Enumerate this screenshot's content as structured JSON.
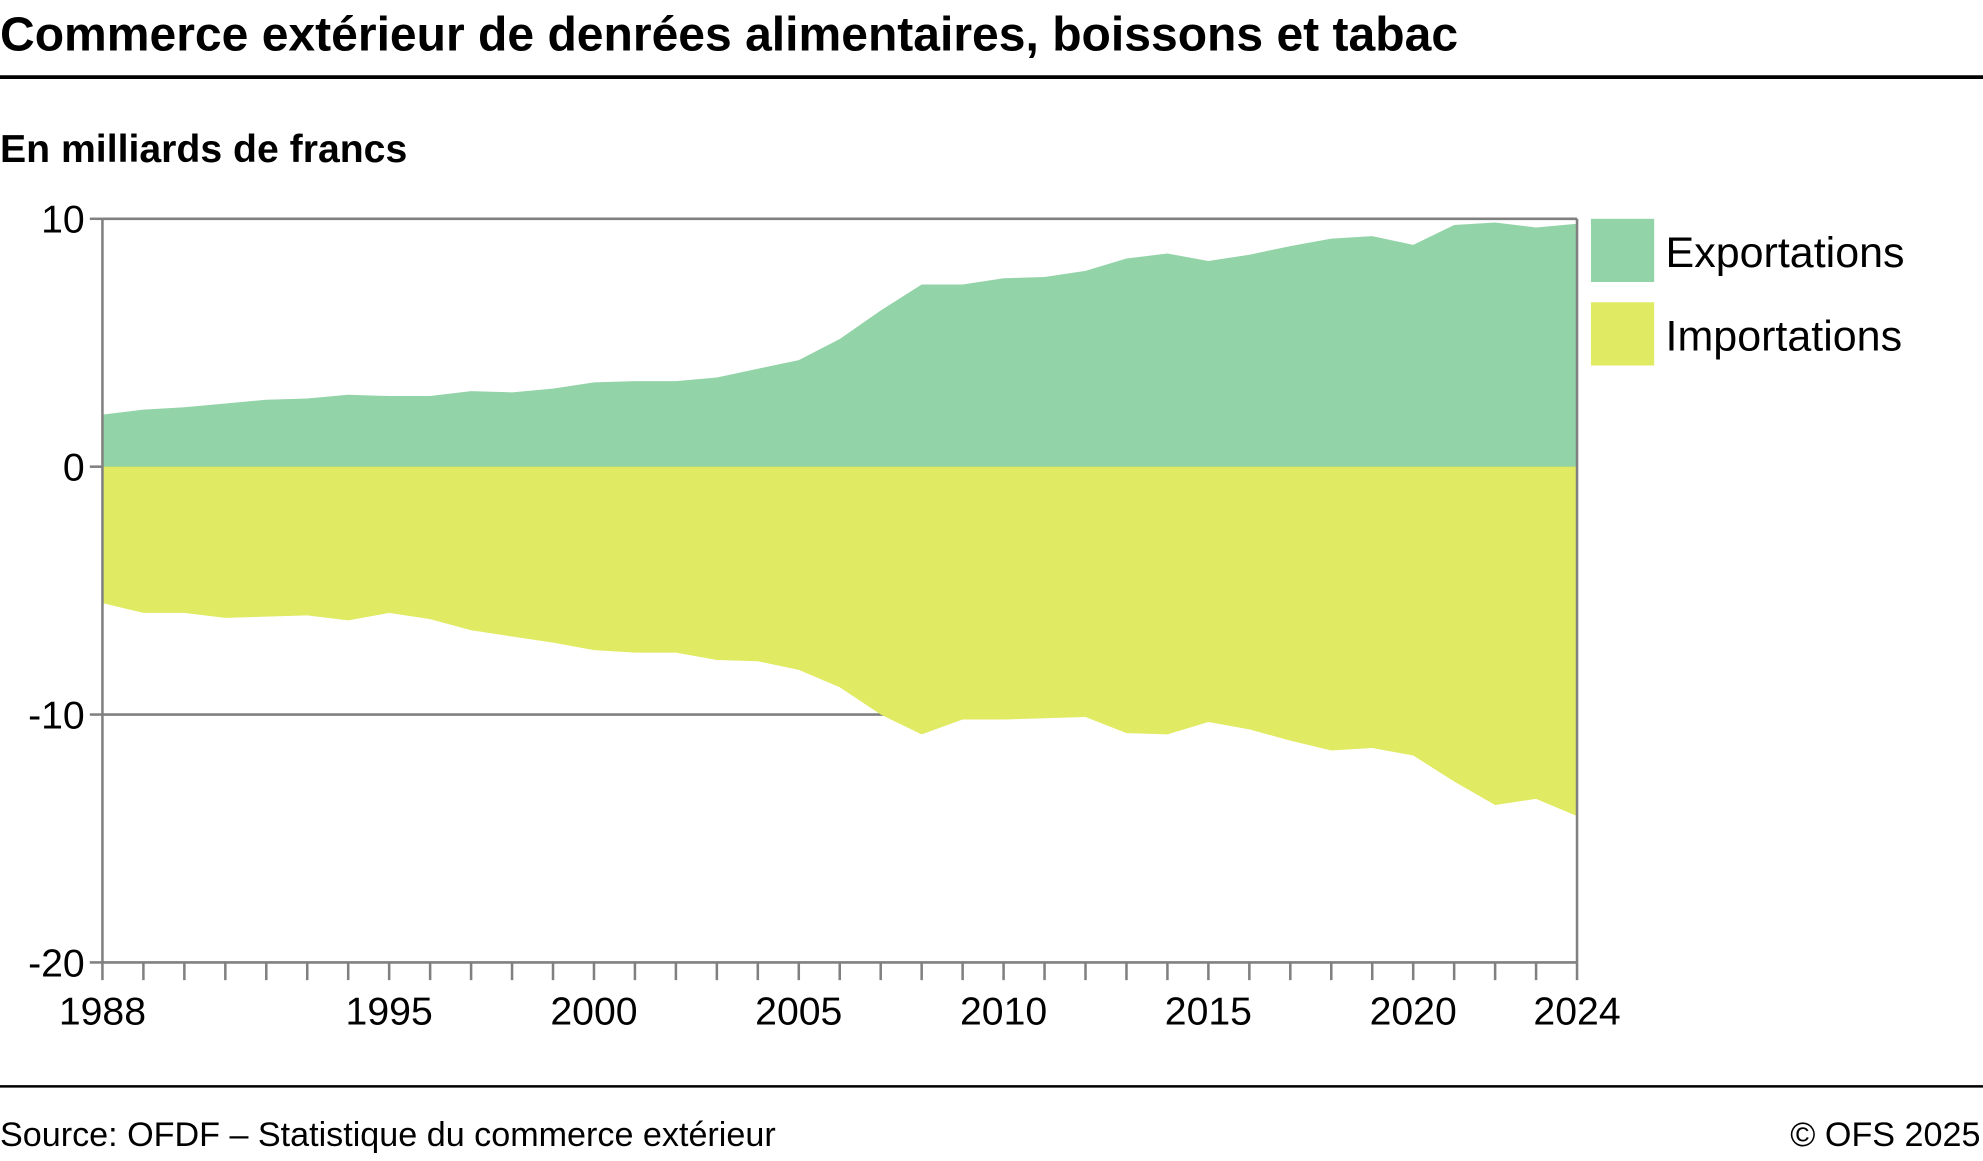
{
  "title": "Commerce extérieur de denrées alimentaires, boissons et tabac",
  "subtitle": "En milliards de francs",
  "footer": {
    "source": "Source: OFDF – Statistique du commerce extérieur",
    "copyright": "© OFS 2025"
  },
  "colors": {
    "exports": "#93d3a8",
    "imports": "#e0ea62",
    "axis": "#808080"
  },
  "chart_data": {
    "type": "area",
    "title": "Commerce extérieur de denrées alimentaires, boissons et tabac",
    "ylabel": "En milliards de francs",
    "xlabel": "",
    "ylim": [
      -20,
      10
    ],
    "xlim": [
      1988,
      2024
    ],
    "yticks": [
      "10",
      "0",
      "-10",
      "-20"
    ],
    "ytick_values": [
      10,
      0,
      -10,
      -20
    ],
    "xtick_labels": [
      "1988",
      "1995",
      "2000",
      "2005",
      "2010",
      "2015",
      "2020",
      "2024"
    ],
    "grid": "horizontal at -10, 0, 10",
    "legend_position": "right-top",
    "x": [
      1988,
      1989,
      1990,
      1991,
      1992,
      1993,
      1994,
      1995,
      1996,
      1997,
      1998,
      1999,
      2000,
      2001,
      2002,
      2003,
      2004,
      2005,
      2006,
      2007,
      2008,
      2009,
      2010,
      2011,
      2012,
      2013,
      2014,
      2015,
      2016,
      2017,
      2018,
      2019,
      2020,
      2021,
      2022,
      2023,
      2024
    ],
    "series": [
      {
        "name": "Exportations",
        "values": [
          2.1,
          2.3,
          2.4,
          2.55,
          2.7,
          2.75,
          2.9,
          2.85,
          2.85,
          3.05,
          3.0,
          3.15,
          3.4,
          3.45,
          3.45,
          3.6,
          3.95,
          4.3,
          5.15,
          6.3,
          7.35,
          7.35,
          7.6,
          7.65,
          7.9,
          8.4,
          8.6,
          8.3,
          8.55,
          8.9,
          9.2,
          9.3,
          8.95,
          9.75,
          9.85,
          9.65,
          9.8
        ]
      },
      {
        "name": "Importations",
        "values": [
          -5.5,
          -5.9,
          -5.9,
          -6.1,
          -6.05,
          -6.0,
          -6.2,
          -5.9,
          -6.15,
          -6.6,
          -6.85,
          -7.1,
          -7.4,
          -7.5,
          -7.5,
          -7.8,
          -7.85,
          -8.2,
          -8.9,
          -10.0,
          -10.8,
          -10.2,
          -10.2,
          -10.15,
          -10.1,
          -10.75,
          -10.8,
          -10.3,
          -10.6,
          -11.05,
          -11.45,
          -11.35,
          -11.65,
          -12.7,
          -13.65,
          -13.4,
          -14.1
        ]
      }
    ]
  }
}
